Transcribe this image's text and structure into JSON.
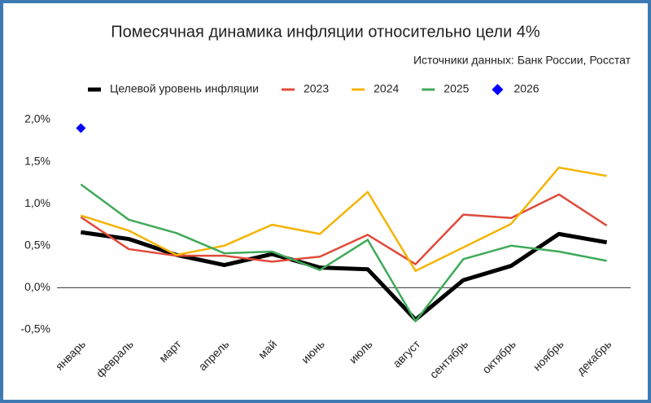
{
  "chart_data": {
    "type": "line",
    "title": "Помесячная динамика инфляции относительно цели 4%",
    "subtitle": "Источники данных: Банк России, Росстат",
    "categories": [
      "январь",
      "февраль",
      "март",
      "апрель",
      "май",
      "июнь",
      "июль",
      "август",
      "сентябрь",
      "октябрь",
      "ноябрь",
      "декабрь"
    ],
    "series": [
      {
        "name": "Целевой уровень инфляции",
        "color": "#000000",
        "line_width": 5,
        "values": [
          0.66,
          0.58,
          0.39,
          0.27,
          0.4,
          0.24,
          0.22,
          -0.38,
          0.09,
          0.26,
          0.64,
          0.54
        ]
      },
      {
        "name": "2023",
        "color": "#e04a3b",
        "line_width": 2.5,
        "values": [
          0.84,
          0.46,
          0.38,
          0.38,
          0.31,
          0.37,
          0.63,
          0.28,
          0.87,
          0.83,
          1.11,
          0.74
        ]
      },
      {
        "name": "2024",
        "color": "#f4b400",
        "line_width": 2.5,
        "values": [
          0.86,
          0.68,
          0.39,
          0.5,
          0.75,
          0.64,
          1.14,
          0.2,
          0.48,
          0.76,
          1.43,
          1.33
        ]
      },
      {
        "name": "2025",
        "color": "#3faa5a",
        "line_width": 2.5,
        "values": [
          1.23,
          0.81,
          0.65,
          0.41,
          0.43,
          0.21,
          0.57,
          -0.4,
          0.34,
          0.5,
          0.43,
          0.32
        ]
      },
      {
        "name": "2026",
        "color": "#0000ff",
        "marker": "diamond",
        "values": [
          1.9,
          null,
          null,
          null,
          null,
          null,
          null,
          null,
          null,
          null,
          null,
          null
        ]
      }
    ],
    "ylim": [
      -0.5,
      2.0
    ],
    "yticks": [
      {
        "value": -0.5,
        "label": "-0,5%"
      },
      {
        "value": 0,
        "label": "0,0%"
      },
      {
        "value": 0.5,
        "label": "0,5%"
      },
      {
        "value": 1.0,
        "label": "1,0%"
      },
      {
        "value": 1.5,
        "label": "1,5%"
      },
      {
        "value": 2.0,
        "label": "2,0%"
      }
    ],
    "grid": false,
    "legend": "top"
  }
}
